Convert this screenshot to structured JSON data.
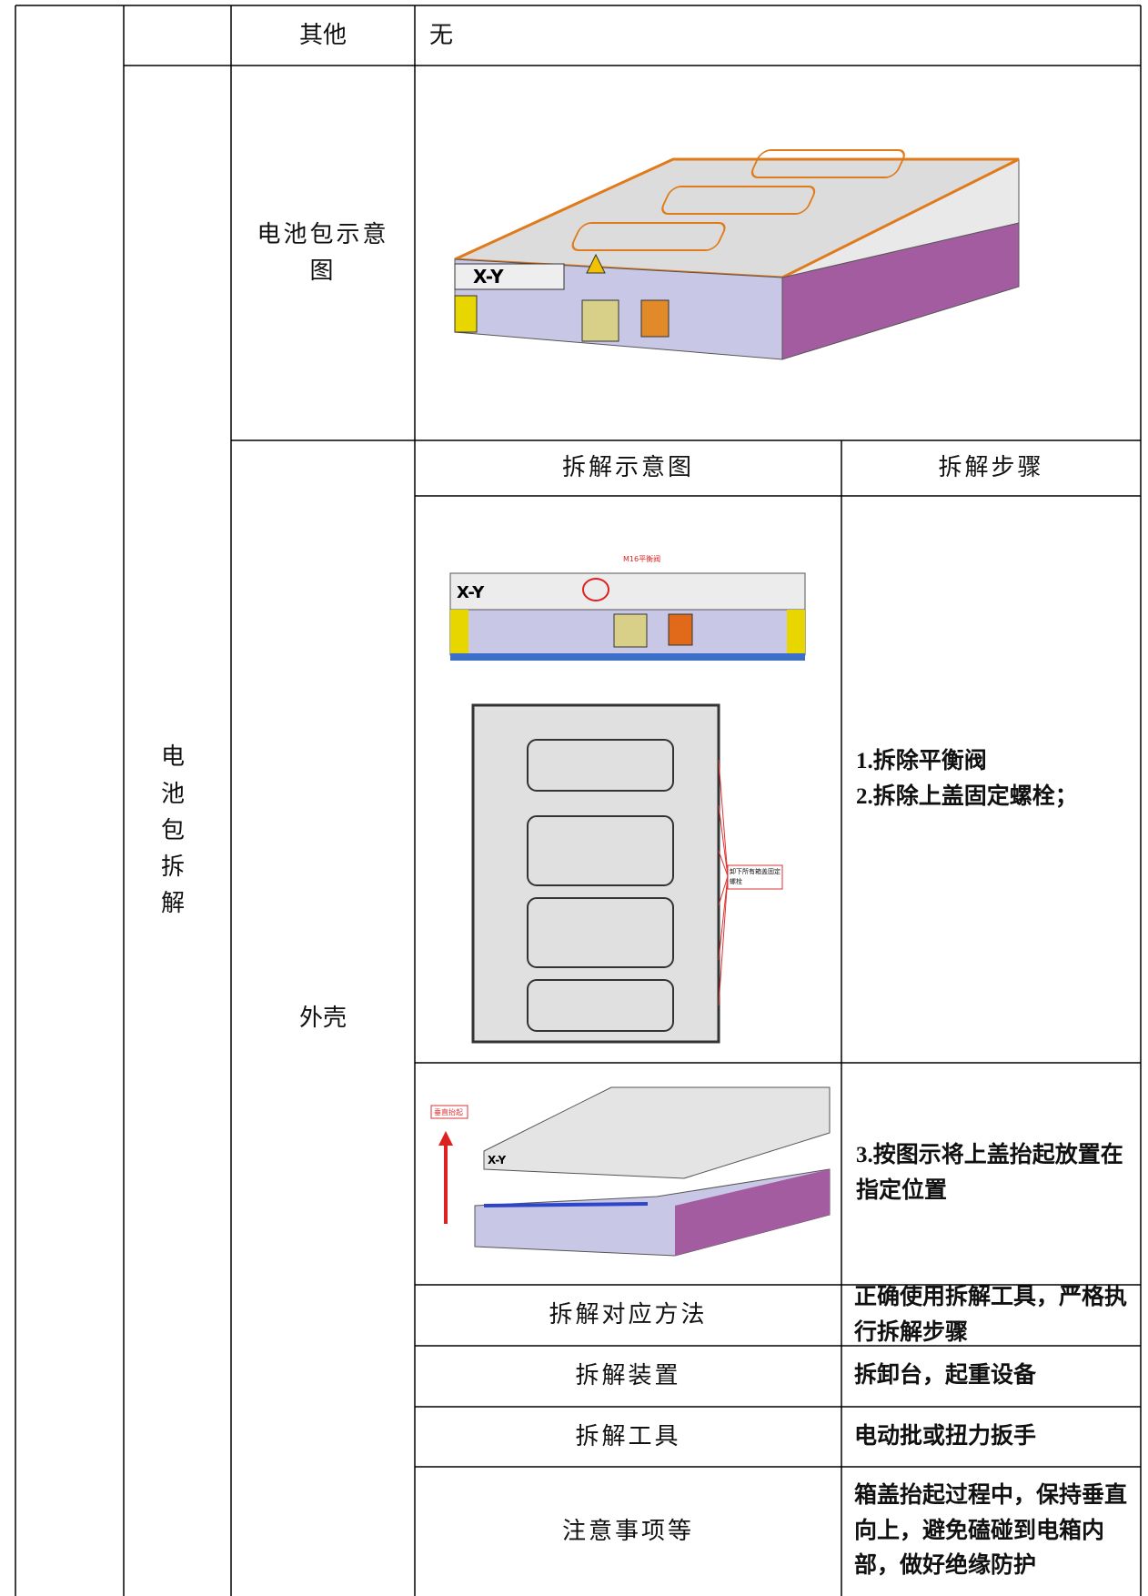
{
  "table": {
    "other": {
      "label": "其他",
      "value": "无"
    },
    "pack_diagram": {
      "label": "电池包示意图"
    },
    "section": "电池包拆解",
    "part": "外壳",
    "header": [
      "拆解示意图",
      "拆解步骤"
    ],
    "steps": [
      "1.拆除平衡阀",
      "2.拆除上盖固定螺栓；",
      "3.按图示将上盖抬起放置在指定位置"
    ],
    "details": [
      {
        "label": "拆解对应方法",
        "value": "正确使用拆解工具，严格执行拆解步骤"
      },
      {
        "label": "拆解装置",
        "value": "拆卸台，起重设备"
      },
      {
        "label": "拆解工具",
        "value": "电动批或扭力扳手"
      },
      {
        "label": "注意事项等",
        "value": "箱盖抬起过程中，保持垂直向上，避免磕碰到电箱内部，做好绝缘防护"
      }
    ],
    "image_labels": {
      "brand": "X-Y",
      "valve": "M16平衡阀",
      "bolts": "卸下所有箱盖固定螺栓",
      "lift": "垂直抬起"
    }
  }
}
